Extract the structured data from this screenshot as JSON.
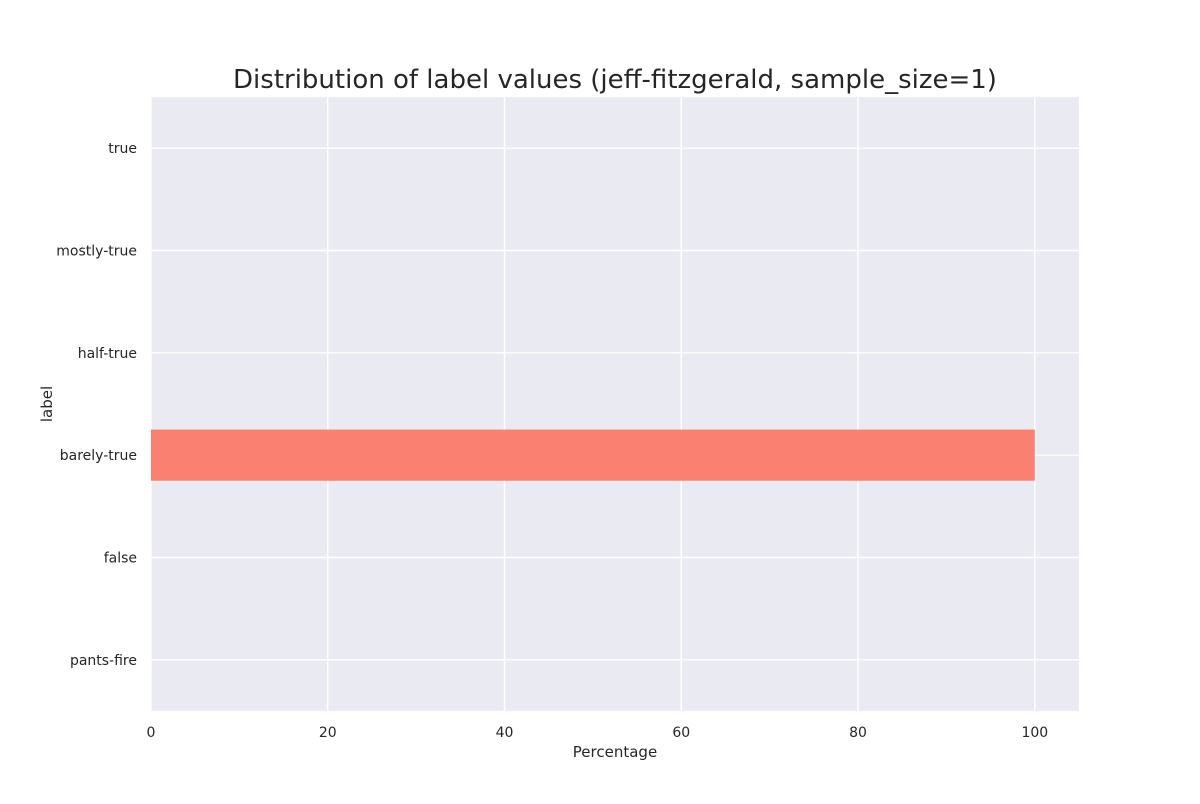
{
  "chart_data": {
    "type": "bar",
    "orientation": "horizontal",
    "title": "Distribution of label values (jeff-fitzgerald, sample_size=1)",
    "xlabel": "Percentage",
    "ylabel": "label",
    "categories": [
      "true",
      "mostly-true",
      "half-true",
      "barely-true",
      "false",
      "pants-fire"
    ],
    "values": [
      0,
      0,
      0,
      100,
      0,
      0
    ],
    "xlim": [
      0,
      105
    ],
    "xticks": [
      0,
      20,
      40,
      60,
      80,
      100
    ],
    "grid": true,
    "colors": {
      "bar": "#fa8072",
      "plot_background": "#eaeaf2",
      "grid": "#ffffff",
      "text": "#262626"
    }
  }
}
